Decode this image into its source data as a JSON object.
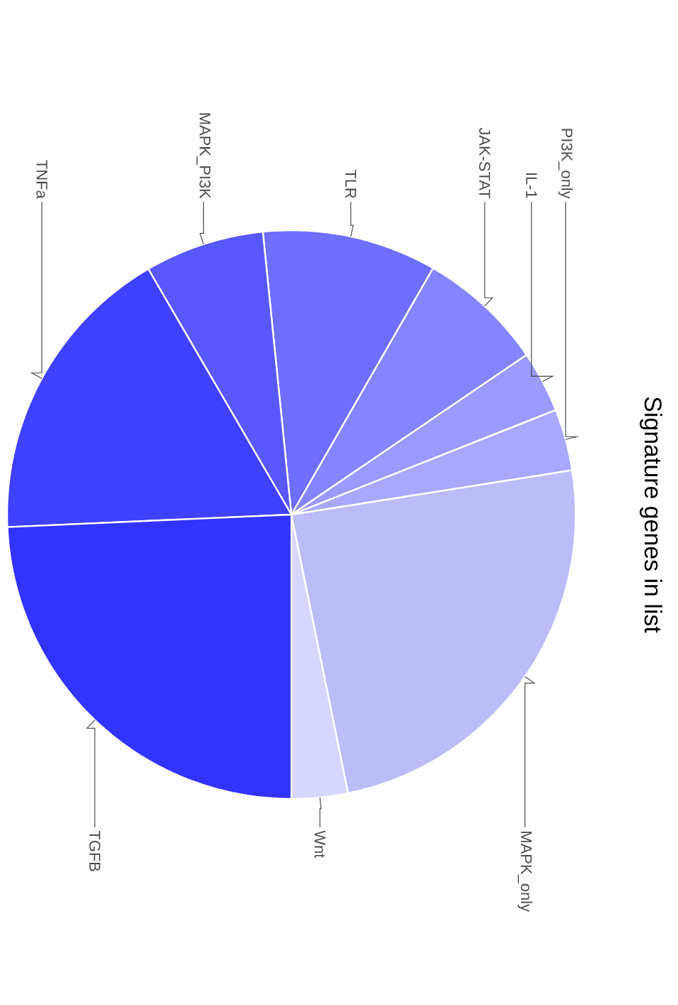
{
  "chart_data": {
    "type": "pie",
    "title": "Signature genes in list",
    "categories": [
      "Wnt",
      "MAPK_only",
      "PI3K_only",
      "IL-1",
      "JAK-STAT",
      "TLR",
      "MAPK_PI3K",
      "TNFa",
      "TGFB"
    ],
    "values": [
      3.2,
      24.3,
      3.5,
      3.5,
      7.2,
      9.9,
      6.8,
      17.3,
      24.3
    ],
    "colors": [
      "#d6d6ff",
      "#bcbcf8",
      "#a8a8ff",
      "#9a9aff",
      "#8585ff",
      "#6e6eff",
      "#5858ff",
      "#4040ff",
      "#3333ff"
    ]
  }
}
